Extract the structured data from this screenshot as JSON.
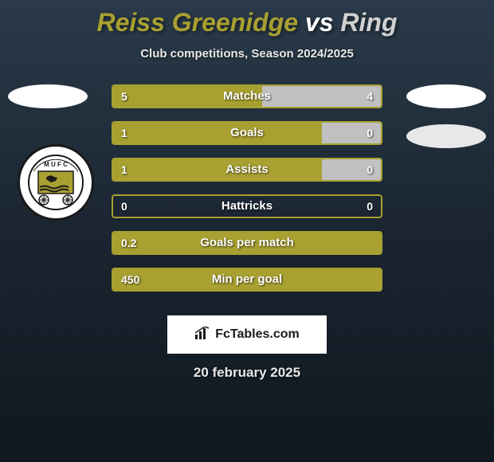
{
  "header": {
    "player1": "Reiss Greenidge",
    "vs": "vs",
    "player2": "Ring",
    "subtitle": "Club competitions, Season 2024/2025"
  },
  "stats": [
    {
      "label": "Matches",
      "left_val": "5",
      "right_val": "4",
      "left_pct": 55.6,
      "right_pct": 44.4
    },
    {
      "label": "Goals",
      "left_val": "1",
      "right_val": "0",
      "left_pct": 78,
      "right_pct": 22
    },
    {
      "label": "Assists",
      "left_val": "1",
      "right_val": "0",
      "left_pct": 78,
      "right_pct": 22
    },
    {
      "label": "Hattricks",
      "left_val": "0",
      "right_val": "0",
      "left_pct": 0,
      "right_pct": 0
    },
    {
      "label": "Goals per match",
      "left_val": "0.2",
      "right_val": "",
      "left_pct": 100,
      "right_pct": 0
    },
    {
      "label": "Min per goal",
      "left_val": "450",
      "right_val": "",
      "left_pct": 100,
      "right_pct": 0
    }
  ],
  "styling": {
    "player1_color": "#a8a030",
    "player2_color": "#c0c0c0",
    "bar_border_color": "#a8a030",
    "text_color": "#ffffff",
    "badge_bg": "#ffffff",
    "badge_ring": "#1a1a1a",
    "badge_text": "MUFC",
    "badge_accent": "#a8a030"
  },
  "attribution": {
    "text": "FcTables.com"
  },
  "date": "20 february 2025"
}
